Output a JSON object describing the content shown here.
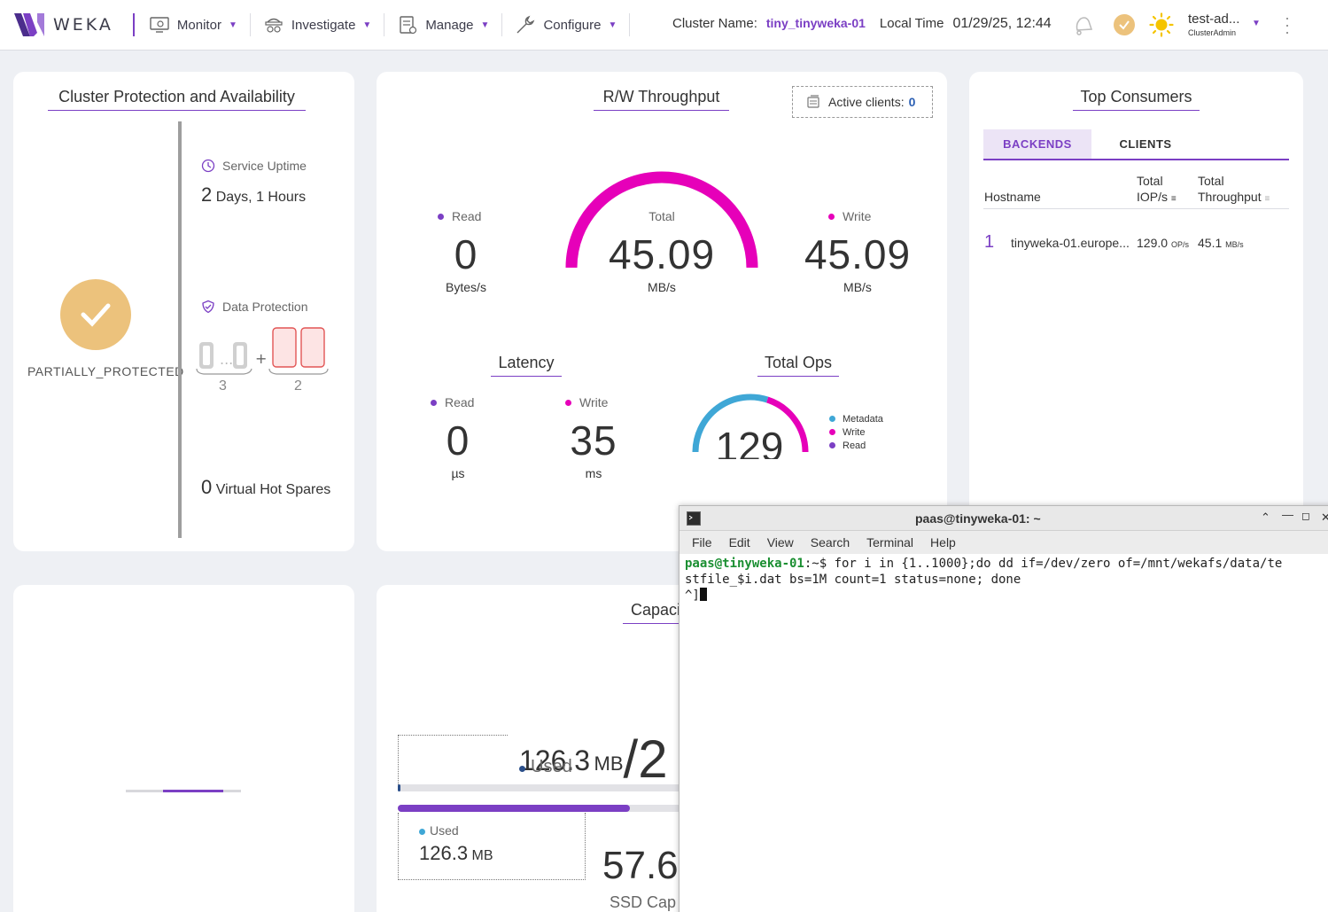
{
  "nav": {
    "logo_text": "WEKA",
    "items": [
      {
        "label": "Monitor",
        "icon": "monitor-icon"
      },
      {
        "label": "Investigate",
        "icon": "investigate-icon"
      },
      {
        "label": "Manage",
        "icon": "manage-icon"
      },
      {
        "label": "Configure",
        "icon": "wrench-icon"
      }
    ],
    "cluster_name_label": "Cluster Name:",
    "cluster_name": "tiny_tinyweka-01",
    "local_time_label": "Local Time",
    "local_time": "01/29/25, 12:44",
    "user_name": "test-ad...",
    "user_role": "ClusterAdmin"
  },
  "protection": {
    "title": "Cluster Protection and Availability",
    "status": "PARTIALLY_PROTECTED",
    "uptime_label": "Service Uptime",
    "uptime_days": "2",
    "uptime_days_unit": "Days,",
    "uptime_hours": "1",
    "uptime_hours_unit": "Hours",
    "data_protection_label": "Data Protection",
    "data_drives": "3",
    "parity_drives": "2",
    "hot_spares_count": "0",
    "hot_spares_label": "Virtual Hot Spares"
  },
  "throughput": {
    "title": "R/W Throughput",
    "active_clients_label": "Active clients:",
    "active_clients": "0",
    "read_label": "Read",
    "read_value": "0",
    "read_unit": "Bytes/s",
    "total_label": "Total",
    "total_value": "45.09",
    "total_unit": "MB/s",
    "write_label": "Write",
    "write_value": "45.09",
    "write_unit": "MB/s",
    "total_gauge_fraction": 1.0
  },
  "latency": {
    "title": "Latency",
    "read_label": "Read",
    "read_value": "0",
    "read_unit": "µs",
    "write_label": "Write",
    "write_value": "35",
    "write_unit": "ms"
  },
  "total_ops": {
    "title": "Total Ops",
    "value": "129",
    "legend": [
      "Metadata",
      "Write",
      "Read"
    ],
    "metadata_fraction": 0.6,
    "write_fraction": 0.4
  },
  "top_consumers": {
    "title": "Top Consumers",
    "tabs": [
      "BACKENDS",
      "CLIENTS"
    ],
    "columns": {
      "hostname": "Hostname",
      "iops_line1": "Total",
      "iops_line2": "IOP/s",
      "throughput_line1": "Total",
      "throughput_line2": "Throughput"
    },
    "rows": [
      {
        "rank": "1",
        "host": "tinyweka-01.europe...",
        "iops": "129.0",
        "iops_unit": "OP/s",
        "throughput": "45.1",
        "throughput_unit": "MB/s"
      }
    ]
  },
  "capacity": {
    "title": "Capaci",
    "used_value": "126.3",
    "used_unit": "MB",
    "slash_text": "/2",
    "used_label": "Used",
    "used_fraction": 0.01,
    "ssd_used_fraction": 0.82,
    "ssd_used_label": "Used",
    "ssd_used_value": "126.3",
    "ssd_used_unit": "MB",
    "ssd_capacity_value": "57.6",
    "ssd_capacity_label": "SSD Cap"
  },
  "terminal": {
    "title": "paas@tinyweka-01: ~",
    "menu": [
      "File",
      "Edit",
      "View",
      "Search",
      "Terminal",
      "Help"
    ],
    "prompt_user": "paas@tinyweka-01",
    "prompt_rest": ":~$ ",
    "command_line1": "for i in {1..1000};do dd if=/dev/zero of=/mnt/wekafs/data/te",
    "command_line2": "stfile_$i.dat bs=1M count=1 status=none; done",
    "output_line": "^]"
  },
  "colors": {
    "accent": "#7b3fc4",
    "magenta": "#e600b9",
    "metadata": "#3fa7d6",
    "check": "#ecc27c"
  }
}
